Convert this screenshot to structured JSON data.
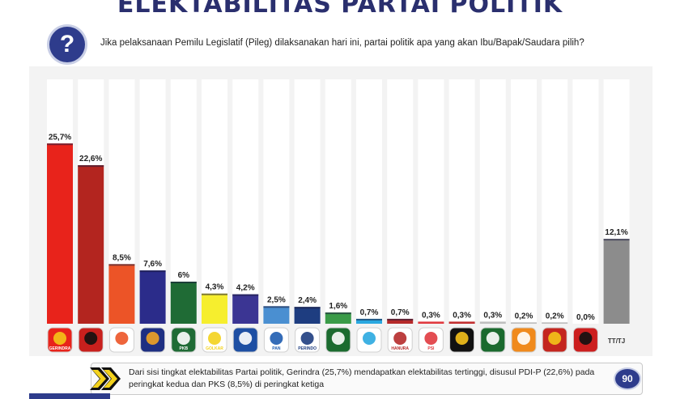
{
  "header": {
    "title": "ELEKTABILITAS PARTAI POLITIK",
    "question_icon": "?",
    "question": "Jika pelaksanaan Pemilu Legislatif (Pileg) dilaksanakan hari ini, partai politik apa yang akan Ibu/Bapak/Saudara pilih?"
  },
  "chart_data": {
    "type": "bar",
    "values": [
      25.7,
      22.6,
      8.5,
      7.6,
      6.0,
      4.3,
      4.2,
      2.5,
      2.4,
      1.6,
      0.7,
      0.7,
      0.3,
      0.3,
      0.3,
      0.2,
      0.2,
      0.0,
      12.1
    ],
    "data_labels": [
      "25,7%",
      "22,6%",
      "8,5%",
      "7,6%",
      "6%",
      "4,3%",
      "4,2%",
      "2,5%",
      "2,4%",
      "1,6%",
      "0,7%",
      "0,7%",
      "0,3%",
      "0,3%",
      "0,3%",
      "0,2%",
      "0,2%",
      "0,0%",
      "12,1%"
    ],
    "colors": [
      "#e8231b",
      "#b3251f",
      "#ec5427",
      "#2b2c8a",
      "#1f6b35",
      "#f6ee2e",
      "#3b3593",
      "#4a8fd1",
      "#1e3d80",
      "#3a9b48",
      "#2aa8e0",
      "#b52a2a",
      "#e03a3f",
      "#c22f30",
      "#bfbfbf",
      "#bfbfbf",
      "#bfbfbf",
      "#bfbfbf",
      "#8c8c8c"
    ],
    "logos": [
      {
        "bg": "#e8231b",
        "fg": "#f4c518",
        "text": "GERINDRA"
      },
      {
        "bg": "#c8201d",
        "fg": "#111111",
        "text": ""
      },
      {
        "bg": "#ffffff",
        "fg": "#ec5427",
        "text": ""
      },
      {
        "bg": "#1e2f82",
        "fg": "#f0a424",
        "text": ""
      },
      {
        "bg": "#1f6b35",
        "fg": "#ffffff",
        "text": "PKB"
      },
      {
        "bg": "#ffffff",
        "fg": "#f3d21c",
        "text": "GOLKAR"
      },
      {
        "bg": "#1e4fa3",
        "fg": "#ffffff",
        "text": ""
      },
      {
        "bg": "#ffffff",
        "fg": "#1e5cb0",
        "text": "PAN"
      },
      {
        "bg": "#ffffff",
        "fg": "#1e3d80",
        "text": "PERINDO"
      },
      {
        "bg": "#1b6b2f",
        "fg": "#ffffff",
        "text": ""
      },
      {
        "bg": "#ffffff",
        "fg": "#2aa8e0",
        "text": ""
      },
      {
        "bg": "#ffffff",
        "fg": "#b52a2a",
        "text": "HANURA"
      },
      {
        "bg": "#ffffff",
        "fg": "#e03a3f",
        "text": "PSI"
      },
      {
        "bg": "#111111",
        "fg": "#f6c21c",
        "text": ""
      },
      {
        "bg": "#1a6a2e",
        "fg": "#ffffff",
        "text": ""
      },
      {
        "bg": "#f08a1c",
        "fg": "#ffffff",
        "text": ""
      },
      {
        "bg": "#c4261f",
        "fg": "#f4c518",
        "text": ""
      },
      {
        "bg": "#cc1f1f",
        "fg": "#111111",
        "text": ""
      },
      {
        "bg": "#f3f3f3",
        "fg": "#333333",
        "text": "TT/TJ"
      }
    ],
    "ylim": [
      0,
      30
    ]
  },
  "footer": {
    "text": "Dari sisi tingkat elektabilitas Partai politik, Gerindra (25,7%) mendapatkan elektabilitas tertinggi, disusul PDI-P (22,6%) pada peringkat kedua dan PKS (8,5%) di peringkat ketiga",
    "page_number": "90"
  },
  "colors": {
    "brand": "#2e3c8c",
    "arrow": "#f3d21c"
  }
}
